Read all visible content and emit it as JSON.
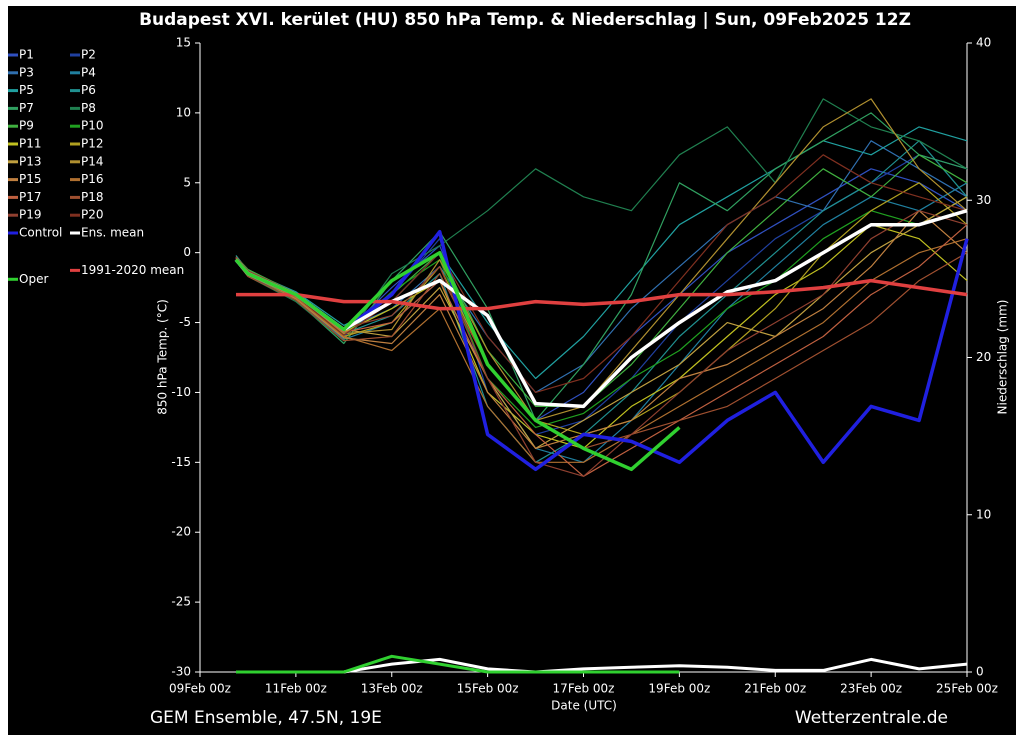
{
  "chart_data": {
    "type": "line",
    "title": "Budapest XVI. kerület  (HU)  850 hPa Temp. & Niederschlag | Sun, 09Feb2025 12Z",
    "subtitle": "GEM Ensemble, 47.5N, 19E",
    "source": "Wetterzentrale.de",
    "x_label": "Date (UTC)",
    "y_label": "850 hPa Temp. (°C)",
    "y2_label": "Niederschlag (mm)",
    "x": [
      0.75,
      1,
      2,
      3,
      4,
      5,
      6,
      7,
      8,
      9,
      10,
      11,
      12,
      13,
      14,
      15,
      16
    ],
    "xlim": [
      0,
      16
    ],
    "xticks": [
      {
        "value": 0,
        "label": "09Feb 00z"
      },
      {
        "value": 2,
        "label": "11Feb 00z"
      },
      {
        "value": 4,
        "label": "13Feb 00z"
      },
      {
        "value": 6,
        "label": "15Feb 00z"
      },
      {
        "value": 8,
        "label": "17Feb 00z"
      },
      {
        "value": 10,
        "label": "19Feb 00z"
      },
      {
        "value": 12,
        "label": "21Feb 00z"
      },
      {
        "value": 14,
        "label": "23Feb 00z"
      },
      {
        "value": 16,
        "label": "25Feb 00z"
      }
    ],
    "ylim": [
      -30,
      15
    ],
    "yticks": [
      -30,
      -25,
      -20,
      -15,
      -10,
      -5,
      0,
      5,
      10,
      15
    ],
    "y2lim": [
      0,
      40
    ],
    "y2ticks": [
      0,
      10,
      20,
      30,
      40
    ],
    "series": [
      {
        "name": "P1",
        "color": "#3050c0",
        "values": [
          -0.3,
          -1.2,
          -3,
          -5.8,
          -2.5,
          0.5,
          -8,
          -12,
          -10,
          -6,
          -3,
          0,
          2,
          4,
          6,
          5,
          3
        ]
      },
      {
        "name": "P2",
        "color": "#2040a0",
        "values": [
          -0.5,
          -1.5,
          -3.2,
          -6,
          -3,
          1,
          -10,
          -13,
          -12,
          -9,
          -5,
          -2,
          1,
          3,
          5,
          7,
          6
        ]
      },
      {
        "name": "P3",
        "color": "#3070b0",
        "values": [
          -0.4,
          -1.4,
          -3.1,
          -5.5,
          -4,
          -1,
          -6,
          -10,
          -8,
          -4,
          -1,
          2,
          4,
          3,
          8,
          6,
          4
        ]
      },
      {
        "name": "P4",
        "color": "#2080a0",
        "values": [
          -0.6,
          -1.6,
          -3.3,
          -6.2,
          -5,
          -2,
          -9,
          -14,
          -15,
          -12,
          -8,
          -4,
          -1,
          2,
          4,
          3,
          5
        ]
      },
      {
        "name": "P5",
        "color": "#20a0a0",
        "values": [
          -0.2,
          -1.3,
          -2.8,
          -5.2,
          -3.5,
          0,
          -5,
          -9,
          -6,
          -2,
          2,
          4,
          6,
          8,
          7,
          9,
          8
        ]
      },
      {
        "name": "P6",
        "color": "#209090",
        "values": [
          -0.5,
          -1.6,
          -3,
          -5.8,
          -4.5,
          -1.5,
          -11,
          -15,
          -13,
          -10,
          -6,
          -3,
          0,
          3,
          5,
          8,
          4
        ]
      },
      {
        "name": "P7",
        "color": "#30a060",
        "values": [
          -0.4,
          -1.5,
          -3.4,
          -6.5,
          -2,
          1.5,
          -4,
          -12,
          -8,
          -3,
          5,
          3,
          6,
          8,
          10,
          7,
          6
        ]
      },
      {
        "name": "P8",
        "color": "#208050",
        "values": [
          -0.6,
          -1.7,
          -3.5,
          -6.3,
          -1.5,
          0.5,
          3,
          6,
          4,
          3,
          7,
          9,
          5,
          11,
          9,
          8,
          6
        ]
      },
      {
        "name": "P9",
        "color": "#40b040",
        "values": [
          -0.3,
          -1.2,
          -2.9,
          -5.6,
          -3,
          0,
          -7,
          -11,
          -11,
          -8,
          -4,
          0,
          3,
          6,
          4,
          7,
          5
        ]
      },
      {
        "name": "P10",
        "color": "#20a020",
        "values": [
          -0.5,
          -1.5,
          -3.1,
          -5.9,
          -2.8,
          -0.5,
          -9,
          -12.5,
          -11.5,
          -9,
          -7,
          -4,
          -2,
          1,
          3,
          2,
          4
        ]
      },
      {
        "name": "P11",
        "color": "#c0c020",
        "values": [
          -0.4,
          -1.4,
          -3,
          -5.7,
          -4,
          -2,
          -10,
          -13,
          -14,
          -11,
          -9,
          -6,
          -3,
          -1,
          2,
          1,
          -2
        ]
      },
      {
        "name": "P12",
        "color": "#b0a020",
        "values": [
          -0.6,
          -1.6,
          -3.2,
          -6,
          -5,
          -1,
          -8,
          -12,
          -13,
          -12,
          -10,
          -7,
          -4,
          0,
          3,
          5,
          2
        ]
      },
      {
        "name": "P13",
        "color": "#c0a040",
        "values": [
          -0.3,
          -1.3,
          -3,
          -5.5,
          -6,
          -2.5,
          -9,
          -14,
          -12,
          -10,
          -8,
          -5,
          -6,
          -3,
          0,
          2,
          4
        ]
      },
      {
        "name": "P14",
        "color": "#b09030",
        "values": [
          -0.5,
          -1.5,
          -3.1,
          -5.8,
          -5.5,
          -0.5,
          -7,
          -12,
          -11,
          -7,
          -3,
          1,
          5,
          9,
          11,
          6,
          3
        ]
      },
      {
        "name": "P15",
        "color": "#c08040",
        "values": [
          -0.4,
          -1.5,
          -3.3,
          -6.1,
          -6.5,
          -3,
          -10,
          -14,
          -13,
          -12,
          -9,
          -8,
          -6,
          -4,
          -1,
          3,
          0
        ]
      },
      {
        "name": "P16",
        "color": "#b07030",
        "values": [
          -0.5,
          -1.6,
          -3.2,
          -6,
          -7,
          -4,
          -11,
          -15,
          -15,
          -13,
          -11,
          -9,
          -7,
          -5,
          -2,
          0,
          1
        ]
      },
      {
        "name": "P17",
        "color": "#c06040",
        "values": [
          -0.4,
          -1.5,
          -3,
          -5.7,
          -5,
          -2,
          -9,
          -13,
          -16,
          -14,
          -12,
          -10,
          -8,
          -6,
          -3,
          -1,
          2
        ]
      },
      {
        "name": "P18",
        "color": "#a05030",
        "values": [
          -0.6,
          -1.7,
          -3.4,
          -6.3,
          -6,
          -1.5,
          -8,
          -12,
          -14,
          -13,
          -12,
          -11,
          -9,
          -7,
          -5,
          -2,
          0
        ]
      },
      {
        "name": "P19",
        "color": "#904030",
        "values": [
          -0.3,
          -1.3,
          -2.9,
          -5.4,
          -4.5,
          -1,
          -9,
          -15,
          -16,
          -13,
          -10,
          -7,
          -5,
          -3,
          1,
          3,
          2
        ]
      },
      {
        "name": "P20",
        "color": "#803020",
        "values": [
          -0.5,
          -1.5,
          -3.1,
          -5.9,
          -3.5,
          0,
          -6,
          -10,
          -9,
          -6,
          -2,
          2,
          4,
          7,
          5,
          4,
          3
        ]
      },
      {
        "name": "Control",
        "color": "#2020e0",
        "values": [
          -0.5,
          -1.5,
          -3,
          -5.5,
          -3,
          1.5,
          -13,
          -15.5,
          -13,
          -13.5,
          -15,
          -12,
          -10,
          -15,
          -11,
          -12,
          1
        ]
      },
      {
        "name": "Ens. mean",
        "color": "#ffffff",
        "values": [
          -0.5,
          -1.5,
          -3,
          -5.5,
          -3.5,
          -2,
          -4.5,
          -10.8,
          -11,
          -7.5,
          -5,
          -2.8,
          -2,
          0,
          2,
          2,
          3
        ]
      },
      {
        "name": "1991-2020 mean",
        "color": "#e04040",
        "values": [
          -3,
          -3,
          -3,
          -3.5,
          -3.5,
          -4,
          -4,
          -3.5,
          -3.7,
          -3.5,
          -3,
          -3,
          -2.8,
          -2.5,
          -2,
          -2.5,
          -3
        ]
      },
      {
        "name": "Oper",
        "color": "#30d030",
        "values": [
          -0.5,
          -1.5,
          -3,
          -5.5,
          -2,
          0,
          -8,
          -12,
          -14,
          -15.5,
          -12.5,
          null,
          null,
          null,
          null,
          null,
          null
        ]
      }
    ],
    "precip_series": [
      {
        "color": "#ffffff",
        "values": [
          0,
          0,
          0,
          0,
          0.5,
          0.8,
          0.2,
          0,
          0.2,
          0.3,
          0.4,
          0.3,
          0.1,
          0.1,
          0.8,
          0.2,
          0.5
        ]
      },
      {
        "color": "#30d030",
        "values": [
          0,
          0,
          0,
          0,
          1,
          0.5,
          0,
          0,
          0,
          0,
          0,
          null,
          null,
          null,
          null,
          null,
          null
        ]
      }
    ]
  }
}
